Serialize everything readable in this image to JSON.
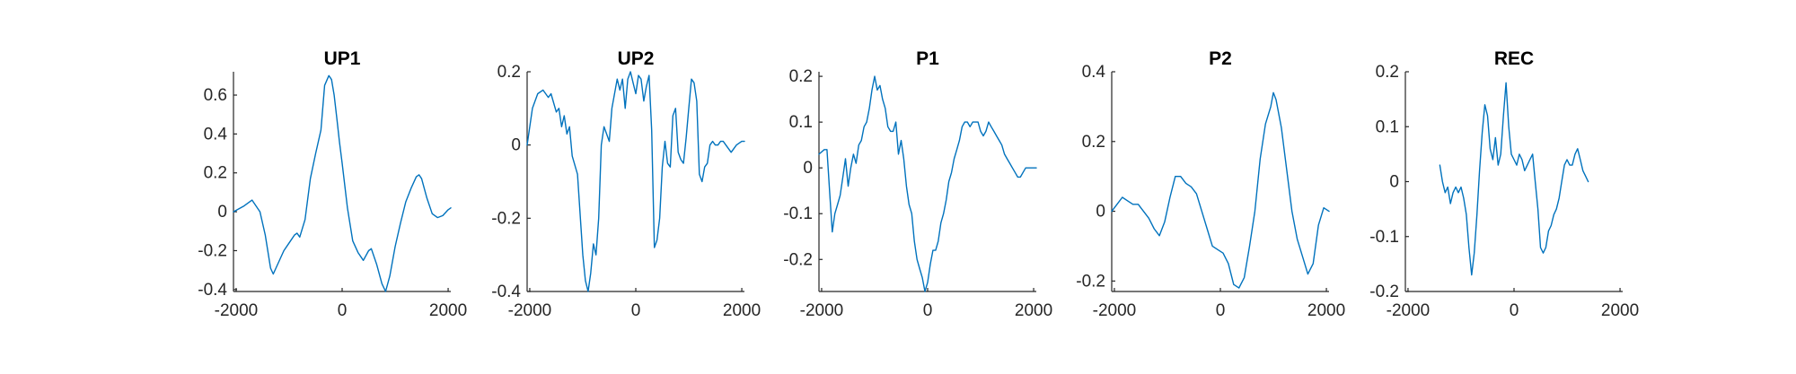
{
  "colors": {
    "line": "#0072BD",
    "axis": "#262626",
    "background": "#ffffff"
  },
  "chart_data": [
    {
      "type": "line",
      "title": "UP1",
      "xlabel": "",
      "ylabel": "",
      "xlim": [
        -2050,
        2050
      ],
      "ylim": [
        -0.41,
        0.72
      ],
      "xticks": [
        -2000,
        0,
        2000
      ],
      "yticks": [
        -0.4,
        -0.2,
        0,
        0.2,
        0.4,
        0.6
      ],
      "ytick_labels": [
        "-0.4",
        "-0.2",
        "0",
        "0.2",
        "0.4",
        "0.6"
      ],
      "xtick_labels": [
        "-2000",
        "0",
        "2000"
      ],
      "series": [
        {
          "x": [
            -2050,
            -1850,
            -1700,
            -1550,
            -1450,
            -1350,
            -1300,
            -1200,
            -1100,
            -1000,
            -900,
            -850,
            -800,
            -700,
            -600,
            -500,
            -400,
            -330,
            -250,
            -200,
            -150,
            -100,
            -50,
            0,
            100,
            200,
            300,
            400,
            500,
            550,
            650,
            750,
            820,
            900,
            1000,
            1100,
            1200,
            1300,
            1400,
            1450,
            1500,
            1600,
            1700,
            1800,
            1900,
            2000,
            2050
          ],
          "y": [
            0.0,
            0.03,
            0.06,
            0.0,
            -0.12,
            -0.29,
            -0.32,
            -0.26,
            -0.2,
            -0.16,
            -0.12,
            -0.11,
            -0.13,
            -0.04,
            0.17,
            0.3,
            0.42,
            0.65,
            0.7,
            0.68,
            0.6,
            0.48,
            0.36,
            0.25,
            0.02,
            -0.15,
            -0.21,
            -0.25,
            -0.2,
            -0.19,
            -0.27,
            -0.37,
            -0.41,
            -0.33,
            -0.18,
            -0.06,
            0.05,
            0.12,
            0.18,
            0.19,
            0.17,
            0.07,
            -0.01,
            -0.03,
            -0.02,
            0.01,
            0.02
          ]
        }
      ]
    },
    {
      "type": "line",
      "title": "UP2",
      "xlabel": "",
      "ylabel": "",
      "xlim": [
        -2050,
        2050
      ],
      "ylim": [
        -0.4,
        0.2
      ],
      "xticks": [
        -2000,
        0,
        2000
      ],
      "yticks": [
        -0.4,
        -0.2,
        0,
        0.2
      ],
      "ytick_labels": [
        "-0.4",
        "-0.2",
        "0",
        "0.2"
      ],
      "xtick_labels": [
        "-2000",
        "0",
        "2000"
      ],
      "series": [
        {
          "x": [
            -2050,
            -1950,
            -1850,
            -1750,
            -1650,
            -1600,
            -1500,
            -1450,
            -1400,
            -1350,
            -1300,
            -1250,
            -1200,
            -1100,
            -1000,
            -950,
            -900,
            -850,
            -800,
            -750,
            -700,
            -650,
            -600,
            -500,
            -450,
            -350,
            -300,
            -250,
            -200,
            -150,
            -100,
            -50,
            0,
            50,
            100,
            150,
            200,
            250,
            300,
            350,
            400,
            450,
            500,
            550,
            600,
            650,
            700,
            750,
            800,
            850,
            900,
            950,
            1000,
            1050,
            1100,
            1150,
            1200,
            1250,
            1300,
            1350,
            1400,
            1450,
            1500,
            1550,
            1600,
            1650,
            1700,
            1800,
            1900,
            2000,
            2050
          ],
          "y": [
            0.0,
            0.1,
            0.14,
            0.15,
            0.13,
            0.14,
            0.09,
            0.1,
            0.05,
            0.08,
            0.03,
            0.05,
            -0.03,
            -0.08,
            -0.3,
            -0.37,
            -0.4,
            -0.35,
            -0.27,
            -0.3,
            -0.2,
            0.0,
            0.05,
            0.01,
            0.1,
            0.18,
            0.15,
            0.18,
            0.1,
            0.18,
            0.2,
            0.17,
            0.14,
            0.19,
            0.18,
            0.12,
            0.16,
            0.19,
            0.04,
            -0.28,
            -0.26,
            -0.2,
            -0.06,
            0.01,
            -0.05,
            -0.06,
            0.08,
            0.1,
            -0.02,
            -0.04,
            -0.05,
            0.02,
            0.1,
            0.18,
            0.17,
            0.12,
            -0.08,
            -0.1,
            -0.06,
            -0.05,
            0.0,
            0.01,
            0.0,
            0.0,
            0.01,
            0.01,
            0.0,
            -0.02,
            0.0,
            0.01,
            0.01
          ]
        }
      ]
    },
    {
      "type": "line",
      "title": "P1",
      "xlabel": "",
      "ylabel": "",
      "xlim": [
        -2050,
        2050
      ],
      "ylim": [
        -0.27,
        0.21
      ],
      "xticks": [
        -2000,
        0,
        2000
      ],
      "yticks": [
        -0.2,
        -0.1,
        0,
        0.1,
        0.2
      ],
      "ytick_labels": [
        "-0.2",
        "-0.1",
        "0",
        "0.1",
        "0.2"
      ],
      "xtick_labels": [
        "-2000",
        "0",
        "2000"
      ],
      "series": [
        {
          "x": [
            -2050,
            -1950,
            -1900,
            -1850,
            -1800,
            -1750,
            -1700,
            -1650,
            -1600,
            -1550,
            -1500,
            -1450,
            -1400,
            -1350,
            -1300,
            -1250,
            -1200,
            -1150,
            -1100,
            -1050,
            -1000,
            -950,
            -900,
            -850,
            -800,
            -750,
            -700,
            -650,
            -600,
            -550,
            -500,
            -450,
            -400,
            -350,
            -300,
            -250,
            -200,
            -150,
            -100,
            -50,
            0,
            50,
            100,
            150,
            200,
            250,
            300,
            350,
            400,
            450,
            500,
            550,
            600,
            650,
            700,
            750,
            800,
            850,
            900,
            950,
            1000,
            1050,
            1100,
            1150,
            1200,
            1250,
            1300,
            1350,
            1400,
            1450,
            1500,
            1550,
            1600,
            1650,
            1700,
            1750,
            1800,
            1850,
            1900,
            1950,
            2000,
            2050
          ],
          "y": [
            0.03,
            0.04,
            0.04,
            -0.05,
            -0.14,
            -0.1,
            -0.08,
            -0.06,
            -0.02,
            0.02,
            -0.04,
            0.0,
            0.03,
            0.01,
            0.05,
            0.06,
            0.09,
            0.1,
            0.13,
            0.17,
            0.2,
            0.17,
            0.18,
            0.15,
            0.13,
            0.09,
            0.08,
            0.08,
            0.1,
            0.03,
            0.06,
            0.02,
            -0.04,
            -0.08,
            -0.1,
            -0.16,
            -0.2,
            -0.22,
            -0.24,
            -0.27,
            -0.25,
            -0.21,
            -0.18,
            -0.18,
            -0.16,
            -0.12,
            -0.1,
            -0.07,
            -0.03,
            -0.01,
            0.02,
            0.04,
            0.06,
            0.09,
            0.1,
            0.1,
            0.09,
            0.1,
            0.1,
            0.1,
            0.08,
            0.07,
            0.08,
            0.1,
            0.09,
            0.08,
            0.07,
            0.06,
            0.05,
            0.03,
            0.02,
            0.01,
            0.0,
            -0.01,
            -0.02,
            -0.02,
            -0.01,
            0.0,
            0.0,
            0.0,
            0.0,
            0.0
          ]
        }
      ]
    },
    {
      "type": "line",
      "title": "P2",
      "xlabel": "",
      "ylabel": "",
      "xlim": [
        -2050,
        2050
      ],
      "ylim": [
        -0.23,
        0.4
      ],
      "xticks": [
        -2000,
        0,
        2000
      ],
      "yticks": [
        -0.2,
        0,
        0.2,
        0.4
      ],
      "ytick_labels": [
        "-0.2",
        "0",
        "0.2",
        "0.4"
      ],
      "xtick_labels": [
        "-2000",
        "0",
        "2000"
      ],
      "series": [
        {
          "x": [
            -2050,
            -1950,
            -1850,
            -1750,
            -1650,
            -1550,
            -1450,
            -1350,
            -1250,
            -1150,
            -1050,
            -950,
            -850,
            -750,
            -650,
            -550,
            -450,
            -350,
            -250,
            -150,
            -50,
            50,
            150,
            250,
            350,
            450,
            550,
            650,
            750,
            850,
            950,
            1000,
            1050,
            1150,
            1250,
            1350,
            1450,
            1550,
            1650,
            1750,
            1850,
            1950,
            2050
          ],
          "y": [
            0.0,
            0.02,
            0.04,
            0.03,
            0.02,
            0.02,
            0.0,
            -0.02,
            -0.05,
            -0.07,
            -0.03,
            0.04,
            0.1,
            0.1,
            0.08,
            0.07,
            0.05,
            0.0,
            -0.05,
            -0.1,
            -0.11,
            -0.12,
            -0.15,
            -0.21,
            -0.22,
            -0.19,
            -0.1,
            0.0,
            0.15,
            0.25,
            0.3,
            0.34,
            0.32,
            0.24,
            0.12,
            0.0,
            -0.08,
            -0.13,
            -0.18,
            -0.15,
            -0.04,
            0.01,
            0.0
          ]
        }
      ]
    },
    {
      "type": "line",
      "title": "REC",
      "xlabel": "",
      "ylabel": "",
      "xlim": [
        -2050,
        2050
      ],
      "ylim": [
        -0.2,
        0.2
      ],
      "xticks": [
        -2000,
        0,
        2000
      ],
      "yticks": [
        -0.2,
        -0.1,
        0,
        0.1,
        0.2
      ],
      "ytick_labels": [
        "-0.2",
        "-0.1",
        "0",
        "0.1",
        "0.2"
      ],
      "xtick_labels": [
        "-2000",
        "0",
        "2000"
      ],
      "series": [
        {
          "x": [
            -1400,
            -1350,
            -1300,
            -1250,
            -1200,
            -1150,
            -1100,
            -1050,
            -1000,
            -950,
            -900,
            -850,
            -800,
            -750,
            -700,
            -650,
            -600,
            -550,
            -500,
            -450,
            -400,
            -350,
            -300,
            -250,
            -200,
            -150,
            -100,
            -50,
            0,
            50,
            100,
            150,
            200,
            250,
            300,
            350,
            400,
            450,
            500,
            550,
            600,
            650,
            700,
            750,
            800,
            850,
            900,
            950,
            1000,
            1050,
            1100,
            1150,
            1200,
            1250,
            1300,
            1350,
            1400
          ],
          "y": [
            0.03,
            0.0,
            -0.02,
            -0.01,
            -0.04,
            -0.02,
            -0.01,
            -0.02,
            -0.01,
            -0.03,
            -0.06,
            -0.12,
            -0.17,
            -0.13,
            -0.06,
            0.02,
            0.09,
            0.14,
            0.12,
            0.06,
            0.04,
            0.08,
            0.03,
            0.05,
            0.12,
            0.18,
            0.1,
            0.05,
            0.04,
            0.03,
            0.05,
            0.04,
            0.02,
            0.03,
            0.04,
            0.05,
            0.0,
            -0.05,
            -0.12,
            -0.13,
            -0.12,
            -0.09,
            -0.08,
            -0.06,
            -0.05,
            -0.03,
            0.0,
            0.03,
            0.04,
            0.03,
            0.03,
            0.05,
            0.06,
            0.04,
            0.02,
            0.01,
            0.0
          ]
        }
      ]
    }
  ]
}
